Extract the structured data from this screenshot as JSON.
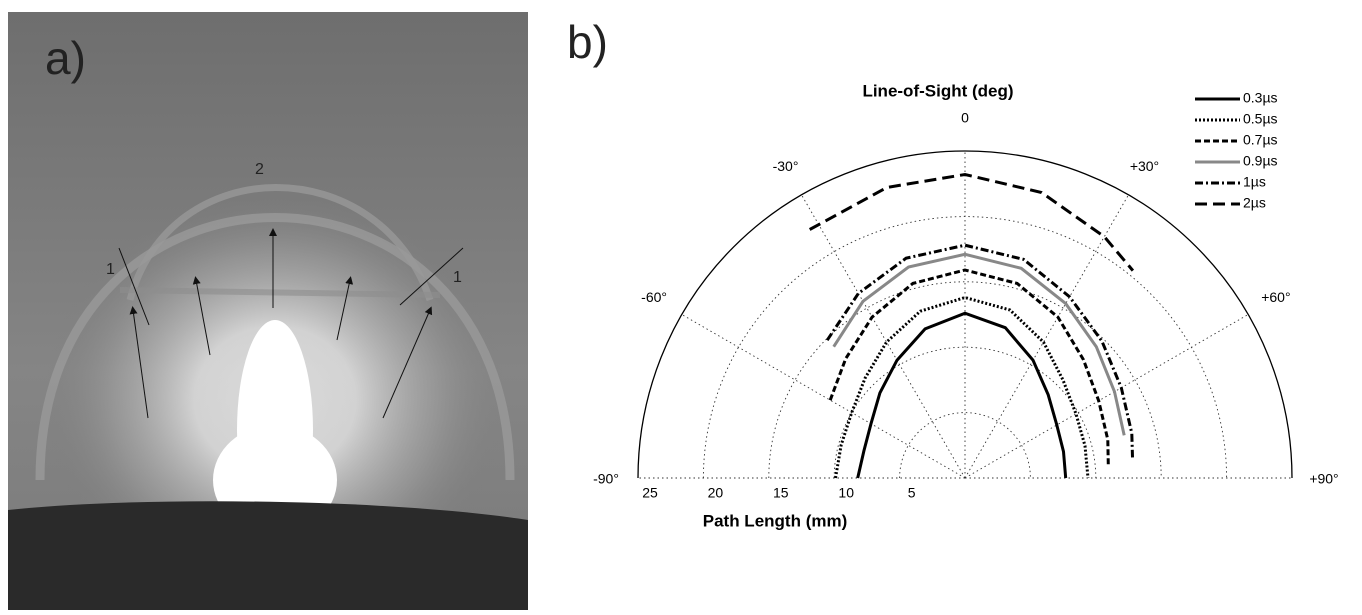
{
  "photo_panel": {
    "label": "a)",
    "annotations": [
      "2",
      "1",
      "1"
    ]
  },
  "chart_data": {
    "type": "polar-line",
    "panel_label": "b)",
    "title": "Line-of-Sight (deg)",
    "r_label": "Path Length (mm)",
    "xlim": [
      -90,
      90
    ],
    "xticks": [
      {
        "value": -90,
        "label": "-90°"
      },
      {
        "value": -60,
        "label": "-60°"
      },
      {
        "value": -30,
        "label": "-30°"
      },
      0,
      {
        "value": 30,
        "label": "+30°"
      },
      {
        "value": 60,
        "label": "+60°"
      },
      {
        "value": 90,
        "label": "+90°"
      }
    ],
    "ylim": [
      0,
      25
    ],
    "yticks": [
      5,
      10,
      15,
      20,
      25
    ],
    "grid": true,
    "legend": "top-right",
    "series": [
      {
        "name": "0.3µs",
        "color": "#000000",
        "dash": "solid",
        "x": [
          -90,
          -75,
          -60,
          -45,
          -30,
          -15,
          0,
          15,
          30,
          45,
          60,
          75,
          90
        ],
        "values": [
          8.2,
          8.0,
          8.3,
          9.2,
          10.4,
          11.8,
          12.6,
          11.9,
          10.4,
          9.0,
          8.1,
          7.8,
          7.7
        ]
      },
      {
        "name": "0.5µs",
        "color": "#000000",
        "dash": "dot",
        "x": [
          -90,
          -75,
          -60,
          -45,
          -30,
          -15,
          0,
          15,
          30,
          45,
          60,
          75,
          90
        ],
        "values": [
          9.9,
          9.8,
          10.0,
          10.8,
          12.0,
          13.2,
          13.8,
          13.3,
          12.0,
          10.6,
          9.8,
          9.5,
          9.4
        ]
      },
      {
        "name": "0.7µs",
        "color": "#000000",
        "dash": "dash",
        "x": [
          -60,
          -45,
          -30,
          -15,
          0,
          15,
          30,
          45,
          60,
          75,
          85
        ],
        "values": [
          11.9,
          12.9,
          14.2,
          15.4,
          15.9,
          15.4,
          14.2,
          12.8,
          11.8,
          11.3,
          11.0
        ]
      },
      {
        "name": "0.9µs",
        "color": "#888888",
        "dash": "solid",
        "x": [
          -45,
          -30,
          -15,
          0,
          15,
          30,
          45,
          60,
          75
        ],
        "values": [
          14.2,
          15.6,
          16.7,
          17.1,
          16.6,
          15.4,
          14.2,
          13.2,
          12.6
        ]
      },
      {
        "name": "1µs",
        "color": "#000000",
        "dash": "dashdot",
        "x": [
          -45,
          -30,
          -15,
          0,
          15,
          30,
          45,
          60,
          75,
          83
        ],
        "values": [
          14.9,
          16.3,
          17.4,
          17.8,
          17.3,
          16.0,
          14.8,
          13.8,
          13.2,
          12.9
        ]
      },
      {
        "name": "2µs",
        "color": "#000000",
        "dash": "longdash",
        "x": [
          -32,
          -15,
          0,
          15,
          30,
          39
        ],
        "values": [
          22.4,
          23.0,
          23.2,
          22.6,
          21.3,
          20.4
        ]
      }
    ]
  }
}
